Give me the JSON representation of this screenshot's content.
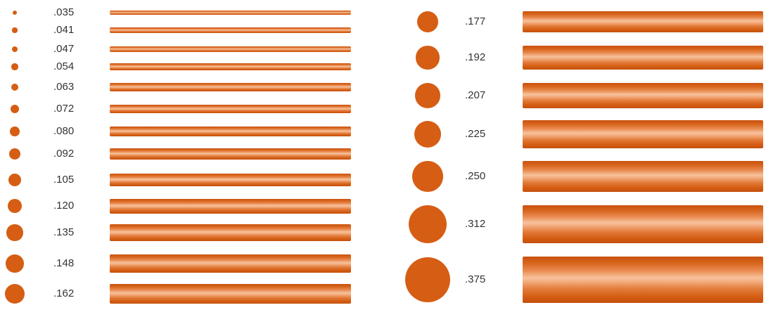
{
  "diagram": {
    "accent_color": "#d55e14",
    "sizes": [
      {
        "label": ".035",
        "value": 0.035
      },
      {
        "label": ".041",
        "value": 0.041
      },
      {
        "label": ".047",
        "value": 0.047
      },
      {
        "label": ".054",
        "value": 0.054
      },
      {
        "label": ".063",
        "value": 0.063
      },
      {
        "label": ".072",
        "value": 0.072
      },
      {
        "label": ".080",
        "value": 0.08
      },
      {
        "label": ".092",
        "value": 0.092
      },
      {
        "label": ".105",
        "value": 0.105
      },
      {
        "label": ".120",
        "value": 0.12
      },
      {
        "label": ".135",
        "value": 0.135
      },
      {
        "label": ".148",
        "value": 0.148
      },
      {
        "label": ".162",
        "value": 0.162
      },
      {
        "label": ".177",
        "value": 0.177
      },
      {
        "label": ".192",
        "value": 0.192
      },
      {
        "label": ".207",
        "value": 0.207
      },
      {
        "label": ".225",
        "value": 0.225
      },
      {
        "label": ".250",
        "value": 0.25
      },
      {
        "label": ".312",
        "value": 0.312
      },
      {
        "label": ".375",
        "value": 0.375
      }
    ]
  }
}
